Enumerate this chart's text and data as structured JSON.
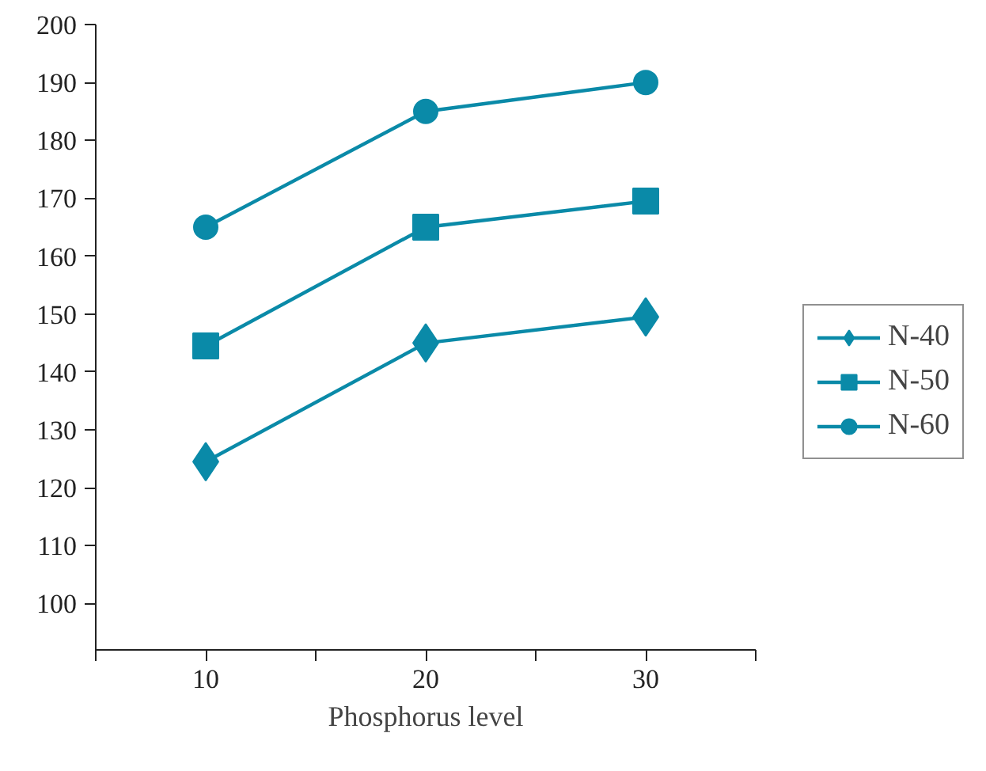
{
  "chart_data": {
    "type": "line",
    "xlabel": "Phosphorus level",
    "x": [
      10,
      20,
      30
    ],
    "series": [
      {
        "name": "N-40",
        "color": "#0a8aa8",
        "marker": "diamond",
        "values": [
          124.5,
          145,
          149.5
        ]
      },
      {
        "name": "N-50",
        "color": "#0a8aa8",
        "marker": "square",
        "values": [
          144.5,
          165,
          169.5
        ]
      },
      {
        "name": "N-60",
        "color": "#0a8aa8",
        "marker": "circle",
        "values": [
          165,
          185,
          190
        ]
      }
    ],
    "xlim": [
      5,
      35
    ],
    "xticks": [
      {
        "value": 5,
        "label": null
      },
      10,
      {
        "value": 15,
        "label": null
      },
      20,
      {
        "value": 25,
        "label": null
      },
      30,
      {
        "value": 35,
        "label": null
      }
    ],
    "ylim": [
      92,
      200
    ],
    "yticks": [
      100,
      110,
      120,
      130,
      140,
      150,
      160,
      170,
      180,
      190,
      200
    ],
    "grid": false,
    "legend": "right",
    "line_style": "solid"
  }
}
